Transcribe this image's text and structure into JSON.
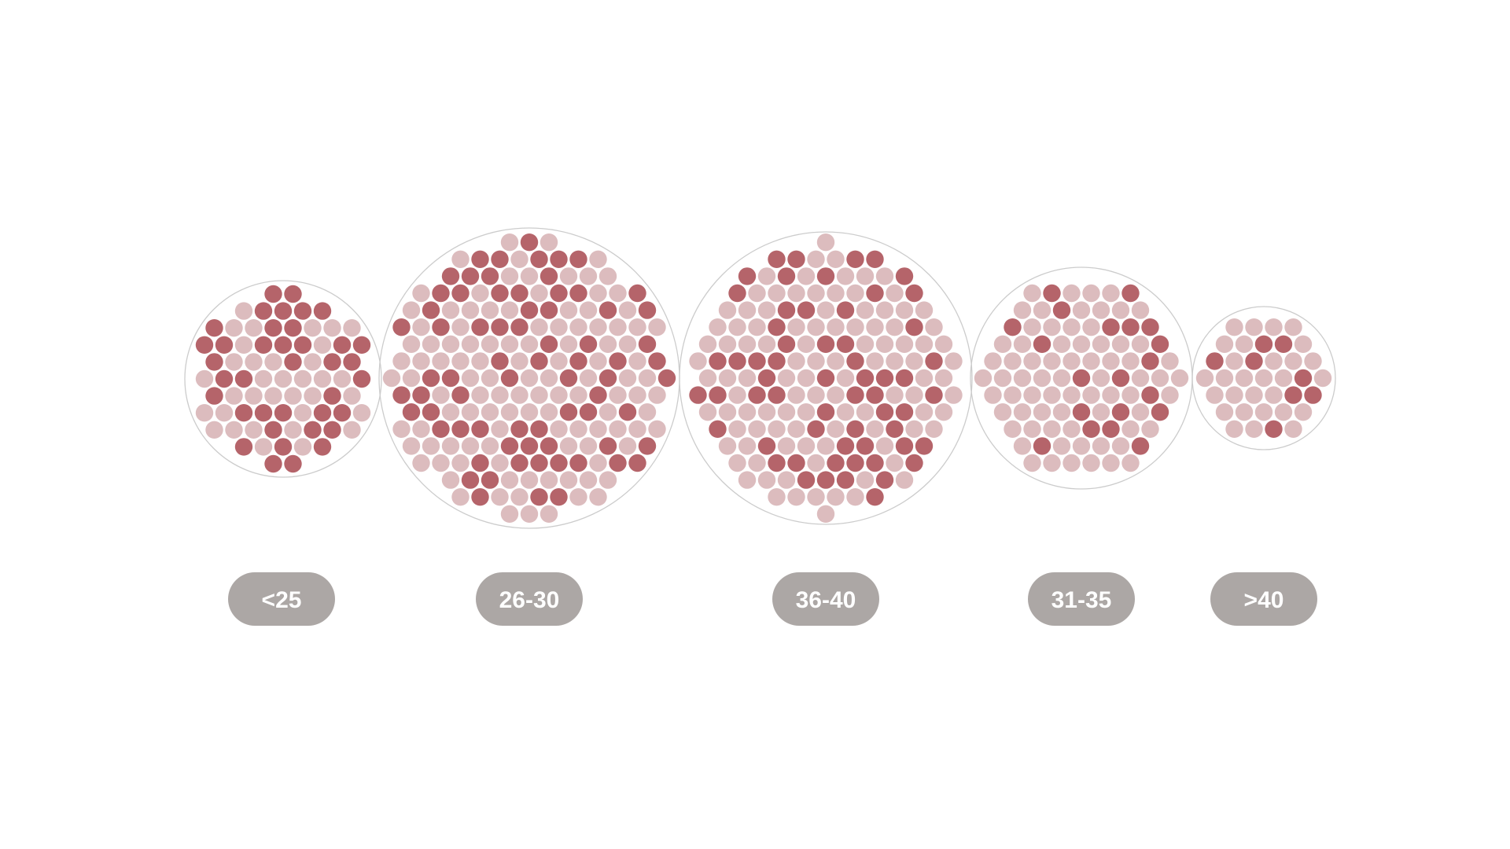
{
  "chart_data": {
    "type": "packed-dot-groups",
    "colors": {
      "highlight": "#b5646a",
      "base": "#dcbcbe",
      "outline": "#cccccc",
      "label_pill": "#aca7a5",
      "label_text": "#ffffff"
    },
    "groups": [
      {
        "label": "<25",
        "total": 79,
        "highlighted": 38
      },
      {
        "label": "26-30",
        "total": 260,
        "highlighted": 72
      },
      {
        "label": "36-40",
        "total": 223,
        "highlighted": 60
      },
      {
        "label": "31-35",
        "total": 131,
        "highlighted": 20
      },
      {
        "label": ">40",
        "total": 41,
        "highlighted": 8
      }
    ]
  }
}
